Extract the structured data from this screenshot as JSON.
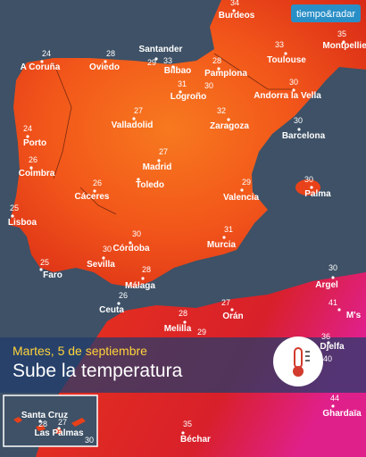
{
  "brand": "tiempo&radar",
  "banner": {
    "date": "Martes, 5 de septiembre",
    "headline": "Sube la temperatura"
  },
  "cities": [
    {
      "name": "Burdeos",
      "temp": 34
    },
    {
      "name": "A Coruña",
      "temp": 24
    },
    {
      "name": "Oviedo",
      "temp": 28
    },
    {
      "name": "Santander",
      "temp": 29
    },
    {
      "name": "Bilbao",
      "temp": 33
    },
    {
      "name": "Pamplona",
      "temp": 28
    },
    {
      "name": "Toulouse",
      "temp": 33
    },
    {
      "name": "Montpellier",
      "temp": 35
    },
    {
      "name": "Logroño",
      "temp": 31
    },
    {
      "temp": 30
    },
    {
      "name": "Andorra la Vella",
      "temp": 30
    },
    {
      "name": "Valladolid",
      "temp": 27
    },
    {
      "name": "Zaragoza",
      "temp": 32
    },
    {
      "name": "Barcelona",
      "temp": 30
    },
    {
      "name": "Porto",
      "temp": 24
    },
    {
      "name": "Coimbra",
      "temp": 26
    },
    {
      "name": "Madrid",
      "temp": 27
    },
    {
      "name": "Toledo"
    },
    {
      "name": "Cáceres",
      "temp": 26
    },
    {
      "name": "Valencia",
      "temp": 29
    },
    {
      "name": "Palma",
      "temp": 30
    },
    {
      "name": "Lisboa",
      "temp": 25
    },
    {
      "name": "Murcia",
      "temp": 31
    },
    {
      "name": "Córdoba",
      "temp": 30
    },
    {
      "name": "Sevilla",
      "temp": 30
    },
    {
      "name": "Faro",
      "temp": 25
    },
    {
      "name": "Málaga",
      "temp": 28
    },
    {
      "name": "Ceuta",
      "temp": 26
    },
    {
      "name": "Orán",
      "temp": 27
    },
    {
      "name": "Melilla",
      "temp": 28
    },
    {
      "temp": 29
    },
    {
      "name": "Argel",
      "temp": 30
    },
    {
      "name": "M's",
      "temp": 41
    },
    {
      "name": "Djelfa",
      "temp": 36
    },
    {
      "temp": 40
    },
    {
      "name": "Ghardaïa",
      "temp": 44
    },
    {
      "name": "Béchar",
      "temp": 35
    }
  ],
  "inset": {
    "cities": [
      {
        "name": "Santa Cruz",
        "temp": 28
      },
      {
        "name": "Las Palmas",
        "temp": 27
      },
      {
        "temp": 30
      }
    ]
  }
}
